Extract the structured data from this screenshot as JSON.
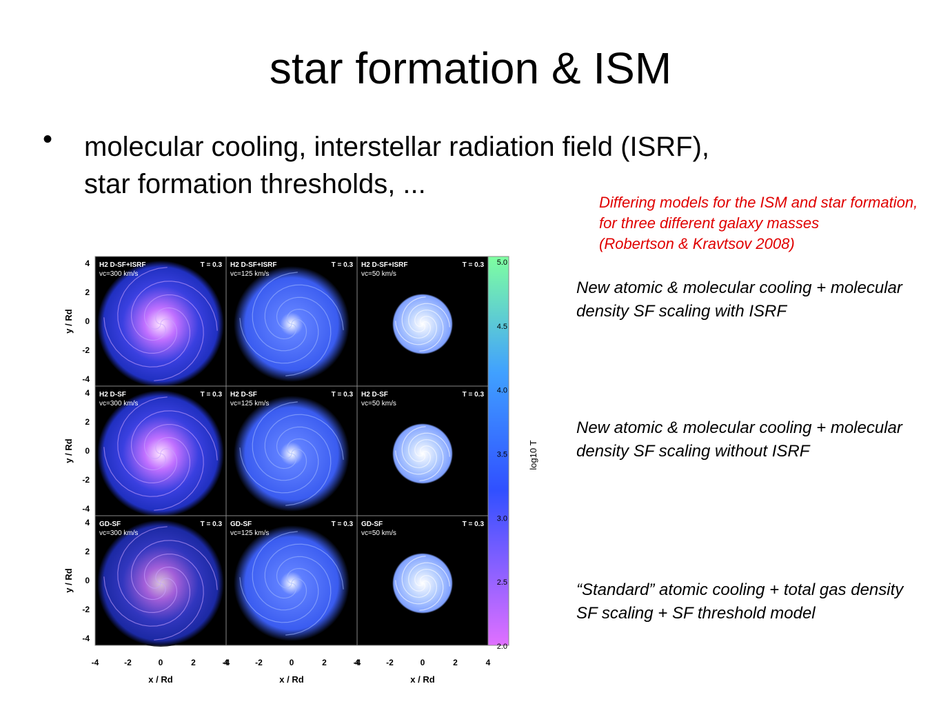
{
  "title": "star formation & ISM",
  "bullets": [
    "molecular cooling, interstellar radiation field (ISRF), star formation thresholds, ..."
  ],
  "caption": {
    "lines": [
      "Differing models for the ISM and star formation, for three different galaxy masses",
      "(Robertson & Kravtsov 2008)"
    ]
  },
  "row_descriptions": [
    "New atomic & molecular cooling + molecular density SF scaling with ISRF",
    "New atomic & molecular cooling + molecular density SF scaling without ISRF",
    "“Standard” atomic cooling + total gas density SF scaling + SF threshold model"
  ],
  "figure": {
    "rows": [
      {
        "model": "H2 D-SF+ISRF"
      },
      {
        "model": "H2 D-SF"
      },
      {
        "model": "GD-SF"
      }
    ],
    "velocities": [
      "vc=300 km/s",
      "vc=125 km/s",
      "vc=50 km/s"
    ],
    "time": "T = 0.3",
    "x_ticks": [
      "-4",
      "-2",
      "0",
      "2",
      "4"
    ],
    "y_ticks": [
      "4",
      "2",
      "0",
      "-2",
      "-4"
    ],
    "x_label": "x / Rd",
    "y_label": "y / Rd",
    "colorbar": {
      "ticks": [
        "5.0",
        "4.5",
        "4.0",
        "3.5",
        "3.0",
        "2.5",
        "2.0"
      ],
      "label": "log10 T"
    }
  }
}
